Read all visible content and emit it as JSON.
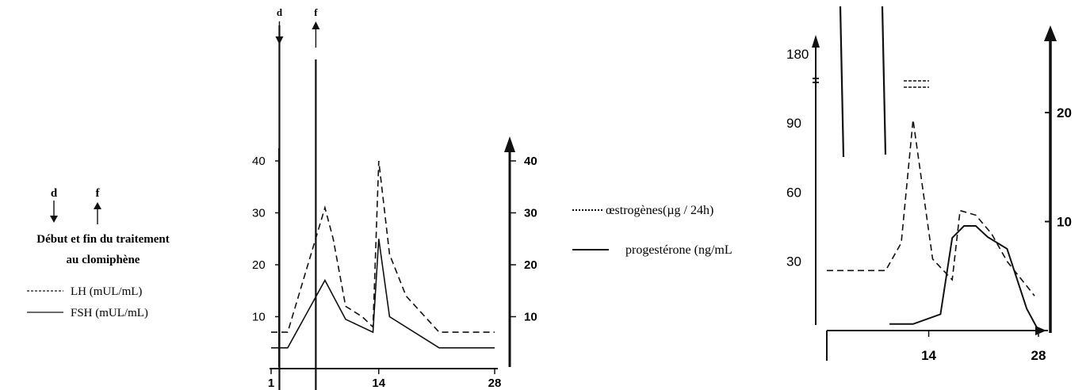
{
  "legend_left": {
    "d_marker": "d",
    "f_marker": "f",
    "title_line1": "Début et fin du traitement",
    "title_line2": "au clomiphène",
    "lh_label": "LH (mUL/mL)",
    "fsh_label": "FSH (mUL/mL)"
  },
  "legend_middle": {
    "oestrogen_label": "œstrogènes(µg / 24h)",
    "progesterone_label": "progestérone (ng/mL"
  },
  "chart_data": [
    {
      "type": "line",
      "markers": {
        "d": "d",
        "f": "f"
      },
      "x_ticks": [
        "1",
        "14",
        "28"
      ],
      "x_tick_values": [
        1,
        14,
        28
      ],
      "y_left_ticks": [
        "10",
        "20",
        "30",
        "40"
      ],
      "y_left_tick_values": [
        10,
        20,
        30,
        40
      ],
      "y_right_ticks": [
        "10",
        "20",
        "30",
        "40"
      ],
      "y_right_tick_values": [
        10,
        20,
        30,
        40
      ],
      "xlim": [
        1,
        28
      ],
      "ylim": [
        0,
        44
      ],
      "d_day": 2.0,
      "f_day": 6.4,
      "series": [
        {
          "name": "LH (mUL/mL)",
          "style": "dashed",
          "x": [
            1,
            3,
            7.5,
            8.5,
            10,
            12,
            13.3,
            14,
            15.3,
            17.3,
            21.3,
            28
          ],
          "y": [
            7,
            7,
            31,
            25,
            12,
            10,
            8,
            40,
            22,
            14,
            7,
            7
          ]
        },
        {
          "name": "FSH (mUL/mL)",
          "style": "solid",
          "x": [
            1,
            3,
            7.5,
            8.5,
            10,
            13.3,
            14,
            15.3,
            21.3,
            28
          ],
          "y": [
            4,
            4,
            17,
            14,
            9.5,
            7,
            25,
            10,
            4,
            4
          ]
        }
      ]
    },
    {
      "type": "line",
      "x_ticks": [
        "14",
        "28"
      ],
      "x_tick_values": [
        14,
        28
      ],
      "y_left_ticks": [
        "30",
        "60",
        "90",
        "180"
      ],
      "y_right_ticks": [
        "10",
        "20"
      ],
      "series": [
        {
          "name": "œstrogènes(µg / 24h)",
          "style": "dashed",
          "x": [
            1,
            5,
            8.5,
            10.5,
            12,
            14.5,
            17,
            18,
            20,
            22,
            24,
            27.5
          ],
          "y": [
            26,
            26,
            26,
            38,
            94,
            31,
            22,
            52,
            50,
            42,
            30,
            15
          ]
        },
        {
          "name": "progestérone (ng/mL",
          "style": "solid",
          "x": [
            9,
            12,
            15.5,
            17,
            18.5,
            20,
            21.5,
            24,
            26.5,
            28
          ],
          "y": [
            0.6,
            0.6,
            1.5,
            8.5,
            9.6,
            9.6,
            8.6,
            7.5,
            2,
            0
          ]
        }
      ]
    }
  ]
}
